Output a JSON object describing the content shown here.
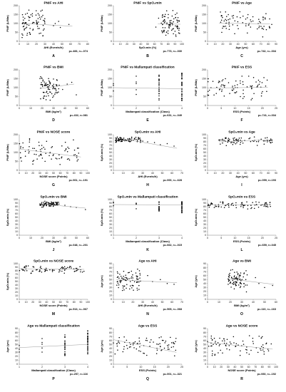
{
  "chart_data": [
    {
      "id": "A",
      "type": "scatter",
      "title": "PNIF vs AHI",
      "xlabel": "AHI (Events/h)",
      "ylabel": "PNIF (L/Min)",
      "xlim": [
        0,
        80
      ],
      "ylim": [
        0,
        200
      ],
      "xticks": [
        0,
        10,
        20,
        30,
        40,
        50,
        60,
        70,
        80
      ],
      "yticks": [
        0,
        50,
        100,
        150,
        200
      ],
      "stat": "p=.466, r=-.074",
      "trend": [
        [
          5,
          100
        ],
        [
          62,
          85
        ]
      ],
      "cluster": {
        "xr": [
          3,
          30
        ],
        "yr": [
          20,
          180
        ]
      },
      "extra": [
        [
          42,
          100
        ],
        [
          48,
          78
        ],
        [
          58,
          95
        ],
        [
          46,
          112
        ],
        [
          40,
          88
        ]
      ]
    },
    {
      "id": "B",
      "type": "scatter",
      "title": "PNIF vs SpO₂min",
      "xlabel": "SpO₂min (%)",
      "ylabel": "PNIF (L/Min)",
      "xlim": [
        0,
        100
      ],
      "ylim": [
        0,
        200
      ],
      "xticks": [
        0,
        10,
        20,
        30,
        40,
        50,
        60,
        70,
        80,
        90,
        100
      ],
      "yticks": [
        0,
        50,
        100,
        150,
        200
      ],
      "stat": "p=.773, r=-.030",
      "trend": [
        [
          65,
          98
        ],
        [
          98,
          96
        ]
      ],
      "cluster": {
        "xr": [
          70,
          97
        ],
        "yr": [
          20,
          180
        ]
      },
      "extra": [
        [
          62,
          80
        ],
        [
          66,
          130
        ]
      ]
    },
    {
      "id": "C",
      "type": "scatter",
      "title": "PNIF vs Age",
      "xlabel": "Age (yrs)",
      "ylabel": "PNIF (L/Min)",
      "xlim": [
        0,
        90
      ],
      "ylim": [
        0,
        200
      ],
      "xticks": [
        0,
        10,
        20,
        30,
        40,
        50,
        60,
        70,
        80,
        90
      ],
      "yticks": [
        0,
        50,
        100,
        150,
        200
      ],
      "stat": "p=.742, r=-.034",
      "trend": [
        [
          15,
          102
        ],
        [
          82,
          98
        ]
      ],
      "cluster": {
        "xr": [
          15,
          85
        ],
        "yr": [
          20,
          180
        ]
      },
      "extra": []
    },
    {
      "id": "D",
      "type": "scatter",
      "title": "PNIF vs BMI",
      "xlabel": "BMI (kg/m²)",
      "ylabel": "PNIF (L/Min)",
      "xlim": [
        0,
        60
      ],
      "ylim": [
        0,
        200
      ],
      "xticks": [
        0,
        10,
        20,
        30,
        40,
        50,
        60
      ],
      "yticks": [
        0,
        50,
        100,
        150,
        200
      ],
      "stat": "p=.432, r=.081",
      "trend": [
        [
          18,
          95
        ],
        [
          48,
          120
        ]
      ],
      "cluster": {
        "xr": [
          18,
          35
        ],
        "yr": [
          20,
          180
        ]
      },
      "extra": [
        [
          42,
          120
        ],
        [
          46,
          130
        ],
        [
          50,
          60
        ],
        [
          38,
          90
        ]
      ]
    },
    {
      "id": "E",
      "type": "scatter",
      "title": "PNIF vs Mallampati classification",
      "xlabel": "Mallampati classification (Class)",
      "ylabel": "PNIF (L/Min)",
      "xlim": [
        1,
        4
      ],
      "ylim": [
        0,
        200
      ],
      "xticks": [
        1,
        2,
        3,
        4
      ],
      "yticks": [
        0,
        50,
        100,
        150,
        200
      ],
      "stat": "p=.631, r=-.049",
      "trend": [
        [
          1,
          100
        ],
        [
          4,
          94
        ]
      ],
      "columns": [
        {
          "x": 1,
          "n": 3,
          "yr": [
            80,
            150
          ]
        },
        {
          "x": 2,
          "n": 5,
          "yr": [
            60,
            170
          ]
        },
        {
          "x": 3,
          "n": 22,
          "yr": [
            30,
            175
          ]
        },
        {
          "x": 4,
          "n": 36,
          "yr": [
            20,
            190
          ]
        }
      ]
    },
    {
      "id": "F",
      "type": "scatter",
      "title": "PNIF vs ESS",
      "xlabel": "ESS (Points)",
      "ylabel": "PNIF (L/Min)",
      "xlim": [
        0,
        25
      ],
      "ylim": [
        0,
        200
      ],
      "xticks": [
        0,
        5,
        10,
        15,
        20,
        25
      ],
      "yticks": [
        0,
        50,
        100,
        150,
        200
      ],
      "stat": "p=.741, r=.034",
      "trend": [
        [
          0,
          98
        ],
        [
          22,
          102
        ]
      ],
      "cluster": {
        "xr": [
          0,
          22
        ],
        "yr": [
          20,
          180
        ]
      },
      "extra": []
    },
    {
      "id": "G",
      "type": "scatter",
      "title": "PNIF vs NOSE score",
      "xlabel": "NOSE score (Points)",
      "ylabel": "PNIF (L/Min)",
      "xlim": [
        0,
        100
      ],
      "ylim": [
        0,
        200
      ],
      "xticks": [
        0,
        10,
        20,
        30,
        40,
        50,
        60,
        70,
        80,
        90,
        100
      ],
      "yticks": [
        0,
        50,
        100,
        150,
        200
      ],
      "stat": "p=.061, r=-.191",
      "trend": [
        [
          0,
          120
        ],
        [
          90,
          75
        ]
      ],
      "cluster": {
        "xr": [
          0,
          90
        ],
        "yr": [
          20,
          180
        ]
      },
      "extra": []
    },
    {
      "id": "H",
      "type": "scatter",
      "title": "SpO₂min vs AHI",
      "xlabel": "AHI (Events/h)",
      "ylabel": "SpO₂min (%)",
      "xlim": [
        0,
        70
      ],
      "ylim": [
        0,
        100
      ],
      "xticks": [
        0,
        10,
        20,
        30,
        40,
        50,
        60,
        70
      ],
      "yticks": [
        0,
        10,
        20,
        30,
        40,
        50,
        60,
        70,
        80,
        90,
        100
      ],
      "stat": "p=.000, r=-.628",
      "trend": [
        [
          2,
          92
        ],
        [
          65,
          62
        ]
      ],
      "cluster": {
        "xr": [
          2,
          28
        ],
        "yr": [
          78,
          96
        ]
      },
      "extra": [
        [
          35,
          80
        ],
        [
          42,
          78
        ],
        [
          48,
          72
        ],
        [
          55,
          75
        ],
        [
          62,
          68
        ],
        [
          30,
          82
        ]
      ]
    },
    {
      "id": "I",
      "type": "scatter",
      "title": "SpO₂min vs Age",
      "xlabel": "Age (yrs)",
      "ylabel": "SpO₂min (%)",
      "xlim": [
        0,
        90
      ],
      "ylim": [
        0,
        100
      ],
      "xticks": [
        0,
        10,
        20,
        30,
        40,
        50,
        60,
        70,
        80,
        90
      ],
      "yticks": [
        0,
        10,
        20,
        30,
        40,
        50,
        60,
        70,
        80,
        90,
        100
      ],
      "stat": "p=.059, r=.193",
      "trend": [
        [
          15,
          80
        ],
        [
          85,
          86
        ]
      ],
      "cluster": {
        "xr": [
          15,
          85
        ],
        "yr": [
          68,
          96
        ]
      },
      "extra": []
    },
    {
      "id": "J",
      "type": "scatter",
      "title": "SpO₂min vs BMI",
      "xlabel": "BMI (kg/m²)",
      "ylabel": "SpO₂min (%)",
      "xlim": [
        0,
        60
      ],
      "ylim": [
        0,
        100
      ],
      "xticks": [
        0,
        10,
        20,
        30,
        40,
        50,
        60
      ],
      "yticks": [
        0,
        10,
        20,
        30,
        40,
        50,
        60,
        70,
        80,
        90,
        100
      ],
      "stat": "p=.048, r=-.201",
      "trend": [
        [
          18,
          88
        ],
        [
          58,
          76
        ]
      ],
      "cluster": {
        "xr": [
          18,
          35
        ],
        "yr": [
          78,
          96
        ]
      },
      "extra": [
        [
          45,
          80
        ],
        [
          50,
          78
        ],
        [
          40,
          84
        ],
        [
          58,
          72
        ]
      ]
    },
    {
      "id": "K",
      "type": "scatter",
      "title": "SpO₂min vs Mallampati classification",
      "xlabel": "Mallampati classification (Class)",
      "ylabel": "SpO₂min (%)",
      "xlim": [
        1,
        4
      ],
      "ylim": [
        0,
        100
      ],
      "xticks": [
        1,
        2,
        3,
        4
      ],
      "yticks": [
        0,
        10,
        20,
        30,
        40,
        50,
        60,
        70,
        80,
        90,
        100
      ],
      "stat": "p=.662, r=-.015",
      "trend": [
        [
          1,
          86
        ],
        [
          4,
          85
        ]
      ],
      "columns": [
        {
          "x": 1,
          "n": 3,
          "yr": [
            80,
            94
          ]
        },
        {
          "x": 2,
          "n": 5,
          "yr": [
            72,
            94
          ]
        },
        {
          "x": 3,
          "n": 22,
          "yr": [
            66,
            96
          ]
        },
        {
          "x": 4,
          "n": 36,
          "yr": [
            62,
            96
          ]
        }
      ]
    },
    {
      "id": "L",
      "type": "scatter",
      "title": "SpO₂min vs ESS",
      "xlabel": "ESS (Points)",
      "ylabel": "SpO₂min (%)",
      "xlim": [
        0,
        25
      ],
      "ylim": [
        0,
        100
      ],
      "xticks": [
        0,
        5,
        10,
        15,
        20,
        25
      ],
      "yticks": [
        0,
        10,
        20,
        30,
        40,
        50,
        60,
        70,
        80,
        90,
        100
      ],
      "stat": "p=.659, r=.045",
      "trend": [
        [
          0,
          85
        ],
        [
          23,
          86
        ]
      ],
      "cluster": {
        "xr": [
          0,
          23
        ],
        "yr": [
          72,
          96
        ]
      },
      "extra": []
    },
    {
      "id": "M",
      "type": "scatter",
      "title": "SpO₂min vs NOSE score",
      "xlabel": "NOSE score (Points)",
      "ylabel": "SpO₂min (%)",
      "xlim": [
        0,
        100
      ],
      "ylim": [
        0,
        100
      ],
      "xticks": [
        0,
        10,
        20,
        30,
        40,
        50,
        60,
        70,
        80,
        90,
        100
      ],
      "yticks": [
        0,
        10,
        20,
        30,
        40,
        50,
        60,
        70,
        80,
        90,
        100
      ],
      "stat": "p=.513, r=-.067",
      "trend": [
        [
          0,
          86
        ],
        [
          95,
          84
        ]
      ],
      "cluster": {
        "xr": [
          0,
          95
        ],
        "yr": [
          72,
          96
        ]
      },
      "extra": []
    },
    {
      "id": "N",
      "type": "scatter",
      "title": "Age vs AHI",
      "xlabel": "AHI (Events/h)",
      "ylabel": "Age (yrs)",
      "xlim": [
        0,
        70
      ],
      "ylim": [
        0,
        90
      ],
      "xticks": [
        0,
        10,
        20,
        30,
        40,
        50,
        60,
        70
      ],
      "yticks": [
        0,
        10,
        20,
        30,
        40,
        50,
        60,
        70,
        80,
        90
      ],
      "stat": "p=.505, r=-.068",
      "trend": [
        [
          3,
          50
        ],
        [
          65,
          42
        ]
      ],
      "cluster": {
        "xr": [
          3,
          28
        ],
        "yr": [
          18,
          80
        ]
      },
      "extra": [
        [
          35,
          60
        ],
        [
          40,
          45
        ],
        [
          48,
          50
        ],
        [
          55,
          40
        ],
        [
          62,
          38
        ]
      ]
    },
    {
      "id": "O",
      "type": "scatter",
      "title": "Age vs BMI",
      "xlabel": "BMI (kg/m²)",
      "ylabel": "Age (yrs)",
      "xlim": [
        0,
        60
      ],
      "ylim": [
        0,
        90
      ],
      "xticks": [
        0,
        10,
        20,
        30,
        40,
        50,
        60
      ],
      "yticks": [
        0,
        10,
        20,
        30,
        40,
        50,
        60,
        70,
        80,
        90
      ],
      "stat": "p=.110, r=-.163",
      "trend": [
        [
          18,
          52
        ],
        [
          58,
          38
        ]
      ],
      "cluster": {
        "xr": [
          18,
          35
        ],
        "yr": [
          18,
          80
        ]
      },
      "extra": [
        [
          45,
          40
        ],
        [
          50,
          30
        ],
        [
          42,
          55
        ],
        [
          57,
          35
        ]
      ]
    },
    {
      "id": "P",
      "type": "scatter",
      "title": "Age vs Mallampati classification",
      "xlabel": "Mallampati classification (Class)",
      "ylabel": "Age (yrs)",
      "xlim": [
        1,
        4
      ],
      "ylim": [
        0,
        90
      ],
      "xticks": [
        1,
        2,
        3,
        4
      ],
      "yticks": [
        0,
        10,
        20,
        30,
        40,
        50,
        60,
        70,
        80,
        90
      ],
      "stat": "p=.257, r=.116",
      "trend": [
        [
          1,
          42
        ],
        [
          4,
          50
        ]
      ],
      "columns": [
        {
          "x": 1,
          "n": 3,
          "yr": [
            30,
            55
          ]
        },
        {
          "x": 2,
          "n": 5,
          "yr": [
            25,
            65
          ]
        },
        {
          "x": 3,
          "n": 22,
          "yr": [
            20,
            80
          ]
        },
        {
          "x": 4,
          "n": 36,
          "yr": [
            18,
            85
          ]
        }
      ]
    },
    {
      "id": "Q",
      "type": "scatter",
      "title": "Age vs ESS",
      "xlabel": "ESS (Points)",
      "ylabel": "Age (yrs)",
      "xlim": [
        0,
        25
      ],
      "ylim": [
        0,
        90
      ],
      "xticks": [
        0,
        5,
        10,
        15,
        20,
        25
      ],
      "yticks": [
        0,
        10,
        20,
        30,
        40,
        50,
        60,
        70,
        80,
        90
      ],
      "stat": "p=.001, r=-.321",
      "trend": [
        [
          0,
          62
        ],
        [
          23,
          30
        ]
      ],
      "cluster": {
        "xr": [
          0,
          23
        ],
        "yr": [
          18,
          80
        ]
      },
      "extra": []
    },
    {
      "id": "R",
      "type": "scatter",
      "title": "Age vs NOSE score",
      "xlabel": "NOSE score (Points)",
      "ylabel": "Age (yrs)",
      "xlim": [
        0,
        100
      ],
      "ylim": [
        0,
        90
      ],
      "xticks": [
        0,
        10,
        20,
        30,
        40,
        50,
        60,
        70,
        80,
        90,
        100
      ],
      "yticks": [
        0,
        10,
        20,
        30,
        40,
        50,
        60,
        70,
        80,
        90
      ],
      "stat": "p=.060, r=-.192",
      "trend": [
        [
          0,
          55
        ],
        [
          95,
          38
        ]
      ],
      "cluster": {
        "xr": [
          0,
          95
        ],
        "yr": [
          18,
          80
        ]
      },
      "extra": []
    }
  ]
}
